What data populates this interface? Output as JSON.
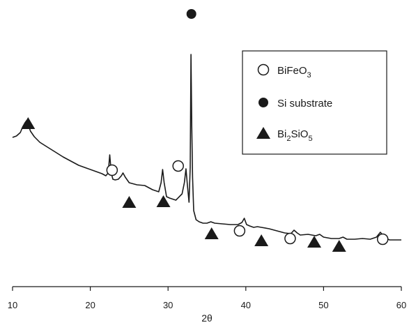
{
  "chart_data": {
    "type": "line",
    "xlabel": "2θ",
    "ylabel": "",
    "xlim": [
      10,
      60
    ],
    "xticks": [
      10,
      20,
      30,
      40,
      50,
      60
    ],
    "grid": false,
    "legend_position": "top-right",
    "legend": [
      {
        "marker": "open-circle",
        "parts": [
          {
            "t": "BiFeO"
          },
          {
            "t": "3",
            "sub": true
          }
        ]
      },
      {
        "marker": "filled-circle",
        "parts": [
          {
            "t": "Si substrate"
          }
        ]
      },
      {
        "marker": "filled-triangle",
        "parts": [
          {
            "t": "Bi"
          },
          {
            "t": "2",
            "sub": true
          },
          {
            "t": "SiO"
          },
          {
            "t": "5",
            "sub": true
          }
        ]
      }
    ],
    "series": [
      {
        "x": [
          10.0,
          10.5,
          11.0,
          11.3,
          11.6,
          11.8,
          12.0,
          12.3,
          12.8,
          13.5,
          14.5,
          15.5,
          16.5,
          17.5,
          18.5,
          19.5,
          20.5,
          21.5,
          22.0,
          22.3,
          22.5,
          22.7,
          22.9,
          23.2,
          23.6,
          24.0,
          24.2,
          24.5,
          25.0,
          26.0,
          27.0,
          28.0,
          28.8,
          29.1,
          29.3,
          29.5,
          29.8,
          30.2,
          31.0,
          31.8,
          32.1,
          32.3,
          32.5,
          32.7,
          32.85,
          32.95,
          33.05,
          33.15,
          33.3,
          33.6,
          34.0,
          34.5,
          35.0,
          35.5,
          36.0,
          37.0,
          38.0,
          39.0,
          39.5,
          39.8,
          40.1,
          40.5,
          41.0,
          41.5,
          42.0,
          43.0,
          44.0,
          45.0,
          45.8,
          46.2,
          46.6,
          47.0,
          48.0,
          49.0,
          49.5,
          50.0,
          51.0,
          52.0,
          52.5,
          53.0,
          54.0,
          55.0,
          56.0,
          56.8,
          57.3,
          57.6,
          58.0,
          58.5,
          59.0,
          60.0
        ],
        "y": [
          197,
          195,
          190,
          182,
          176,
          173,
          178,
          188,
          196,
          204,
          211,
          218,
          225,
          231,
          237,
          241,
          245,
          249,
          252,
          248,
          222,
          248,
          257,
          258,
          257,
          252,
          248,
          254,
          262,
          265,
          266,
          272,
          275,
          262,
          243,
          262,
          282,
          284,
          287,
          278,
          262,
          242,
          267,
          290,
          240,
          78,
          180,
          255,
          302,
          315,
          318,
          320,
          320,
          318,
          320,
          321,
          322,
          322,
          319,
          313,
          322,
          324,
          326,
          325,
          326,
          328,
          331,
          334,
          335,
          330,
          334,
          337,
          336,
          338,
          336,
          340,
          342,
          342,
          340,
          343,
          343,
          342,
          343,
          340,
          333,
          337,
          342,
          344,
          344,
          344
        ]
      }
    ],
    "annotations": [
      {
        "marker": "filled-circle",
        "x": 33.0,
        "y": 20
      },
      {
        "marker": "filled-triangle",
        "x": 12.0,
        "y": 177
      },
      {
        "marker": "open-circle",
        "x": 22.8,
        "y": 244
      },
      {
        "marker": "filled-triangle",
        "x": 25.0,
        "y": 290
      },
      {
        "marker": "filled-triangle",
        "x": 29.4,
        "y": 289
      },
      {
        "marker": "open-circle",
        "x": 31.3,
        "y": 238
      },
      {
        "marker": "filled-triangle",
        "x": 35.6,
        "y": 335
      },
      {
        "marker": "open-circle",
        "x": 39.2,
        "y": 331
      },
      {
        "marker": "filled-triangle",
        "x": 42.0,
        "y": 345
      },
      {
        "marker": "open-circle",
        "x": 45.7,
        "y": 342
      },
      {
        "marker": "filled-triangle",
        "x": 48.8,
        "y": 347
      },
      {
        "marker": "filled-triangle",
        "x": 52.0,
        "y": 353
      },
      {
        "marker": "open-circle",
        "x": 57.6,
        "y": 343
      }
    ]
  }
}
